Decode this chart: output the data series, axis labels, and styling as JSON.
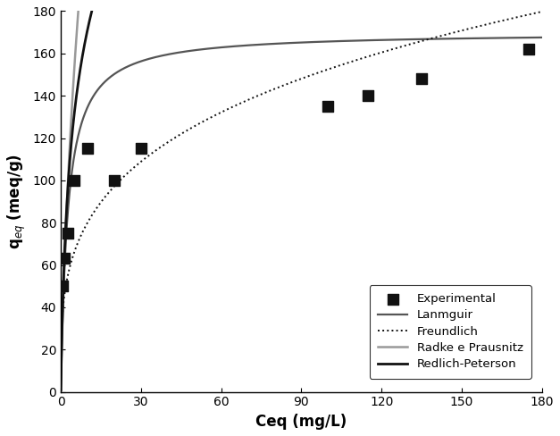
{
  "exp_x": [
    0.5,
    1.2,
    2.5,
    5.0,
    10.0,
    20.0,
    30.0,
    100.0,
    115.0,
    135.0,
    175.0
  ],
  "exp_y": [
    50.0,
    63.0,
    75.0,
    100.0,
    115.0,
    100.0,
    115.0,
    135.0,
    140.0,
    148.0,
    162.0
  ],
  "xlabel": "Ceq (mg/L)",
  "ylabel": "q$_{eq}$ (meq/g)",
  "xlim": [
    0,
    180
  ],
  "ylim": [
    0,
    180
  ],
  "xticks": [
    0,
    30,
    60,
    90,
    120,
    150,
    180
  ],
  "yticks": [
    0,
    20,
    40,
    60,
    80,
    100,
    120,
    140,
    160,
    180
  ],
  "langmuir": {
    "qmax": 170.0,
    "KL": 0.38,
    "color": "#555555",
    "lw": 1.6,
    "label": "Lanmguir"
  },
  "freundlich": {
    "KF": 42.0,
    "n": 0.28,
    "color": "#111111",
    "lw": 1.4,
    "ls": "dotted",
    "label": "Freundlich"
  },
  "radke": {
    "r": 135.0,
    "KR": 0.55,
    "beta": 0.6,
    "color": "#999999",
    "lw": 1.8,
    "label": "Radke e Prausnitz"
  },
  "redlich": {
    "KRP": 85.0,
    "aRP": 0.6,
    "beta": 0.82,
    "color": "#111111",
    "lw": 2.0,
    "label": "Redlich-Peterson"
  },
  "marker_color": "#111111",
  "marker_size": 8,
  "background_color": "#ffffff"
}
